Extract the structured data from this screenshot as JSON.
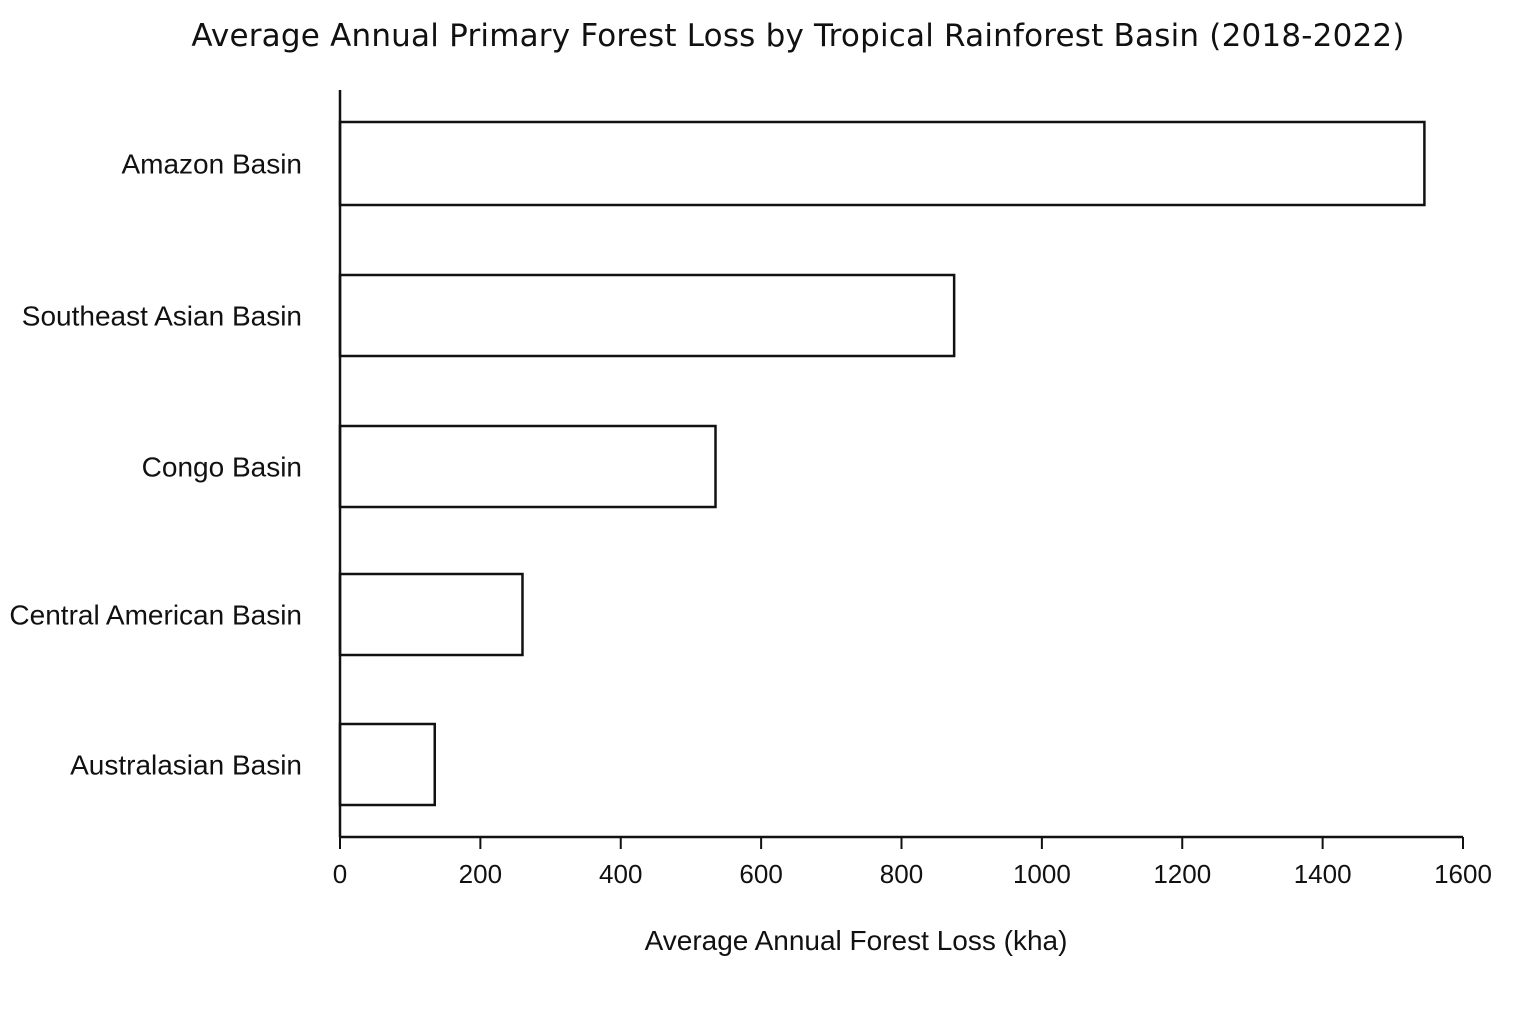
{
  "chart_data": {
    "type": "bar",
    "orientation": "horizontal",
    "title": "Average Annual Primary Forest Loss by Tropical Rainforest Basin (2018-2022)",
    "xlabel": "Average Annual Forest Loss (kha)",
    "ylabel": "",
    "categories": [
      "Amazon Basin",
      "Southeast Asian Basin",
      "Congo Basin",
      "Central American Basin",
      "Australasian Basin"
    ],
    "values": [
      1545,
      875,
      535,
      260,
      135
    ],
    "xlim": [
      0,
      1600
    ],
    "xticks": [
      "0",
      "200",
      "400",
      "600",
      "800",
      "1000",
      "1200",
      "1400",
      "1600"
    ],
    "grid": false,
    "bar_fill": "#ffffff",
    "bar_stroke": "#111111"
  }
}
